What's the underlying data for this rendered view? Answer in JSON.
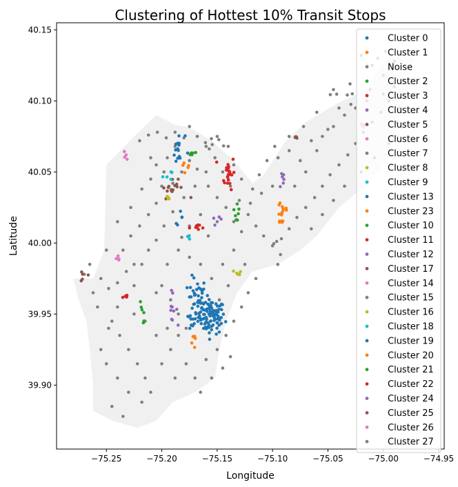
{
  "chart_data": {
    "type": "scatter",
    "title": "Clustering of Hottest 10% Transit Stops",
    "xlabel": "Longitude",
    "ylabel": "Latitude",
    "xlim": [
      -75.295,
      -74.945
    ],
    "ylim": [
      39.855,
      40.155
    ],
    "xticks": [
      -75.25,
      -75.2,
      -75.15,
      -75.1,
      -75.05,
      -75.0,
      -74.95
    ],
    "xtick_labels": [
      "−75.25",
      "−75.20",
      "−75.15",
      "−75.10",
      "−75.05",
      "−75.00",
      "−74.95"
    ],
    "yticks": [
      39.9,
      39.95,
      40.0,
      40.05,
      40.1,
      40.15
    ],
    "ytick_labels": [
      "39.90",
      "39.95",
      "40.00",
      "40.05",
      "40.10",
      "40.15"
    ],
    "grid": false,
    "legend_position": "top-right",
    "background_region_color": "#f0f0f0",
    "series": [
      {
        "name": "Cluster 0",
        "color": "#1f77b4",
        "clusters": [
          [
            -75.155,
            39.948,
            0.006,
            0.006,
            90
          ],
          [
            -75.168,
            39.96,
            0.004,
            0.008,
            40
          ],
          [
            -75.175,
            39.945,
            0.004,
            0.003,
            10
          ]
        ]
      },
      {
        "name": "Cluster 1",
        "color": "#ff7f0e",
        "clusters": [
          [
            -75.091,
            40.022,
            0.003,
            0.006,
            16
          ]
        ]
      },
      {
        "name": "Noise",
        "color": "#7f7f7f",
        "points": [
          [
            -75.255,
            39.975
          ],
          [
            -75.248,
            39.968
          ],
          [
            -75.24,
            39.972
          ],
          [
            -75.232,
            39.98
          ],
          [
            -75.225,
            39.985
          ],
          [
            -75.235,
            39.995
          ],
          [
            -75.228,
            40.005
          ],
          [
            -75.22,
            40.012
          ],
          [
            -75.212,
            40.02
          ],
          [
            -75.205,
            40.028
          ],
          [
            -75.2,
            40.04
          ],
          [
            -75.21,
            40.045
          ],
          [
            -75.218,
            40.038
          ],
          [
            -75.205,
            40.055
          ],
          [
            -75.195,
            40.06
          ],
          [
            -75.188,
            40.068
          ],
          [
            -75.18,
            40.074
          ],
          [
            -75.175,
            40.082
          ],
          [
            -75.168,
            40.075
          ],
          [
            -75.16,
            40.068
          ],
          [
            -75.152,
            40.06
          ],
          [
            -75.145,
            40.05
          ],
          [
            -75.138,
            40.04
          ],
          [
            -75.13,
            40.03
          ],
          [
            -75.122,
            40.02
          ],
          [
            -75.115,
            40.012
          ],
          [
            -75.108,
            40.005
          ],
          [
            -75.1,
            39.998
          ],
          [
            -75.092,
            40.003
          ],
          [
            -75.085,
            40.01
          ],
          [
            -75.078,
            40.018
          ],
          [
            -75.07,
            40.025
          ],
          [
            -75.062,
            40.032
          ],
          [
            -75.055,
            40.04
          ],
          [
            -75.048,
            40.048
          ],
          [
            -75.04,
            40.055
          ],
          [
            -75.032,
            40.062
          ],
          [
            -75.025,
            40.07
          ],
          [
            -75.018,
            40.078
          ],
          [
            -75.01,
            40.085
          ],
          [
            -75.002,
            40.092
          ],
          [
            -74.995,
            40.1
          ],
          [
            -74.99,
            40.11
          ],
          [
            -75.0,
            40.118
          ],
          [
            -75.01,
            40.125
          ],
          [
            -75.02,
            40.132
          ],
          [
            -75.03,
            40.112
          ],
          [
            -75.04,
            40.095
          ],
          [
            -75.05,
            40.08
          ],
          [
            -75.06,
            40.065
          ],
          [
            -75.07,
            40.05
          ],
          [
            -75.08,
            40.04
          ],
          [
            -75.065,
            40.01
          ],
          [
            -75.055,
            40.02
          ],
          [
            -75.045,
            40.03
          ],
          [
            -75.035,
            40.04
          ],
          [
            -75.02,
            40.05
          ],
          [
            -75.008,
            40.06
          ],
          [
            -74.995,
            40.07
          ],
          [
            -74.988,
            40.085
          ],
          [
            -75.015,
            40.1
          ],
          [
            -75.028,
            40.105
          ],
          [
            -75.045,
            40.108
          ],
          [
            -75.06,
            40.092
          ],
          [
            -75.072,
            40.082
          ],
          [
            -75.085,
            40.075
          ],
          [
            -75.098,
            40.068
          ],
          [
            -75.105,
            40.058
          ],
          [
            -75.112,
            40.048
          ],
          [
            -75.118,
            40.038
          ],
          [
            -75.128,
            40.045
          ],
          [
            -75.135,
            40.055
          ],
          [
            -75.14,
            40.068
          ],
          [
            -75.15,
            40.075
          ],
          [
            -75.16,
            40.05
          ],
          [
            -75.17,
            40.04
          ],
          [
            -75.18,
            40.032
          ],
          [
            -75.19,
            40.022
          ],
          [
            -75.198,
            40.012
          ],
          [
            -75.205,
            40.002
          ],
          [
            -75.212,
            39.995
          ],
          [
            -75.218,
            39.985
          ],
          [
            -75.225,
            39.97
          ],
          [
            -75.232,
            39.962
          ],
          [
            -75.24,
            39.955
          ],
          [
            -75.245,
            39.945
          ],
          [
            -75.238,
            39.935
          ],
          [
            -75.23,
            39.925
          ],
          [
            -75.222,
            39.915
          ],
          [
            -75.215,
            39.905
          ],
          [
            -75.21,
            39.895
          ],
          [
            -75.218,
            39.888
          ],
          [
            -75.23,
            39.895
          ],
          [
            -75.24,
            39.905
          ],
          [
            -75.25,
            39.915
          ],
          [
            -75.255,
            39.925
          ],
          [
            -75.248,
            39.94
          ],
          [
            -75.258,
            39.955
          ],
          [
            -75.262,
            39.965
          ],
          [
            -75.245,
            39.885
          ],
          [
            -75.235,
            39.878
          ],
          [
            -75.2,
            39.915
          ],
          [
            -75.192,
            39.925
          ],
          [
            -75.185,
            39.935
          ],
          [
            -75.178,
            39.915
          ],
          [
            -75.17,
            39.905
          ],
          [
            -75.16,
            39.918
          ],
          [
            -75.15,
            39.925
          ],
          [
            -75.142,
            39.935
          ],
          [
            -75.135,
            39.945
          ],
          [
            -75.128,
            39.955
          ],
          [
            -75.122,
            39.965
          ],
          [
            -75.115,
            39.975
          ],
          [
            -75.125,
            39.985
          ],
          [
            -75.135,
            39.995
          ],
          [
            -75.145,
            39.985
          ],
          [
            -75.155,
            39.975
          ],
          [
            -75.165,
            39.985
          ],
          [
            -75.175,
            39.99
          ],
          [
            -75.185,
            39.995
          ],
          [
            -75.195,
            39.985
          ],
          [
            -75.2,
            39.97
          ],
          [
            -75.192,
            39.96
          ],
          [
            -75.185,
            39.95
          ],
          [
            -75.178,
            39.94
          ],
          [
            -75.188,
            39.905
          ],
          [
            -75.165,
            39.895
          ],
          [
            -75.155,
            39.905
          ],
          [
            -75.145,
            39.912
          ],
          [
            -75.138,
            39.92
          ],
          [
            -75.148,
            39.96
          ],
          [
            -75.14,
            39.97
          ],
          [
            -75.13,
            39.978
          ],
          [
            -75.158,
            40.005
          ],
          [
            -75.15,
            40.015
          ],
          [
            -75.142,
            40.025
          ],
          [
            -75.135,
            40.015
          ],
          [
            -75.128,
            40.008
          ],
          [
            -75.165,
            40.02
          ],
          [
            -75.175,
            40.012
          ],
          [
            -75.182,
            40.004
          ],
          [
            -75.19,
            40.042
          ],
          [
            -75.182,
            40.05
          ],
          [
            -75.175,
            40.058
          ],
          [
            -75.168,
            40.052
          ],
          [
            -75.158,
            40.04
          ],
          [
            -75.15,
            40.032
          ],
          [
            -75.22,
            40.072
          ],
          [
            -75.212,
            40.076
          ],
          [
            -75.204,
            40.078
          ],
          [
            -75.196,
            40.074
          ],
          [
            -75.188,
            40.078
          ],
          [
            -75.21,
            40.06
          ],
          [
            -75.198,
            40.05
          ],
          [
            -75.228,
            40.025
          ],
          [
            -75.24,
            40.015
          ],
          [
            -75.25,
            39.995
          ],
          [
            -75.265,
            39.985
          ],
          [
            -75.27,
            39.978
          ],
          [
            -75.205,
            39.935
          ],
          [
            -75.215,
            39.945
          ],
          [
            -75.225,
            39.95
          ],
          [
            -75.205,
            39.965
          ],
          [
            -75.195,
            39.94
          ],
          [
            -75.12,
            40.028
          ],
          [
            -75.11,
            40.035
          ],
          [
            -75.1,
            40.04
          ],
          [
            -75.09,
            40.048
          ],
          [
            -75.095,
            40.06
          ],
          [
            -75.085,
            40.065
          ],
          [
            -75.075,
            40.058
          ],
          [
            -75.065,
            40.072
          ],
          [
            -75.055,
            40.075
          ],
          [
            -75.045,
            40.082
          ],
          [
            -75.035,
            40.09
          ],
          [
            -75.025,
            40.095
          ],
          [
            -75.012,
            40.108
          ],
          [
            -75.0,
            40.105
          ],
          [
            -74.985,
            40.095
          ],
          [
            -74.982,
            40.115
          ],
          [
            -74.99,
            40.128
          ],
          [
            -74.998,
            40.135
          ],
          [
            -75.005,
            40.13
          ]
        ]
      },
      {
        "name": "Cluster 2",
        "color": "#2ca02c",
        "clusters": [
          [
            -75.17,
            40.063,
            0.002,
            0.001,
            5
          ]
        ]
      },
      {
        "name": "Cluster 3",
        "color": "#d62728",
        "clusters": [
          [
            -75.14,
            40.05,
            0.003,
            0.006,
            22
          ]
        ]
      },
      {
        "name": "Cluster 4",
        "color": "#9467bd",
        "clusters": [
          [
            -75.092,
            40.046,
            0.001,
            0.003,
            5
          ]
        ]
      },
      {
        "name": "Cluster 5",
        "color": "#8c564b",
        "clusters": [
          [
            -75.19,
            40.038,
            0.006,
            0.003,
            16
          ]
        ]
      },
      {
        "name": "Cluster 6",
        "color": "#e377c2",
        "clusters": [
          [
            -75.232,
            40.062,
            0.001,
            0.002,
            4
          ]
        ]
      },
      {
        "name": "Cluster 7",
        "color": "#7f7f7f",
        "clusters": [
          [
            -75.155,
            40.07,
            0.006,
            0.004,
            6
          ]
        ]
      },
      {
        "name": "Cluster 8",
        "color": "#bcbd22",
        "clusters": [
          [
            -75.195,
            40.032,
            0.002,
            0.001,
            4
          ]
        ]
      },
      {
        "name": "Cluster 9",
        "color": "#17becf",
        "clusters": [
          [
            -75.195,
            40.048,
            0.002,
            0.002,
            5
          ]
        ]
      },
      {
        "name": "Cluster 13",
        "color": "#1f77b4",
        "clusters": [
          [
            -75.185,
            40.065,
            0.003,
            0.006,
            16
          ]
        ]
      },
      {
        "name": "Cluster 23",
        "color": "#ff7f0e",
        "clusters": [
          [
            -75.178,
            40.058,
            0.002,
            0.004,
            5
          ]
        ]
      },
      {
        "name": "Cluster 10",
        "color": "#2ca02c",
        "clusters": [
          [
            -75.132,
            40.022,
            0.001,
            0.006,
            8
          ]
        ]
      },
      {
        "name": "Cluster 11",
        "color": "#d62728",
        "clusters": [
          [
            -75.165,
            40.011,
            0.005,
            0.001,
            8
          ]
        ]
      },
      {
        "name": "Cluster 12",
        "color": "#9467bd",
        "clusters": [
          [
            -75.15,
            40.016,
            0.002,
            0.001,
            4
          ]
        ]
      },
      {
        "name": "Cluster 17",
        "color": "#8c564b",
        "clusters": [
          [
            -75.08,
            40.074,
            0.002,
            0.001,
            4
          ]
        ]
      },
      {
        "name": "Cluster 14",
        "color": "#e377c2",
        "clusters": [
          [
            -75.018,
            40.084,
            0.002,
            0.002,
            4
          ]
        ]
      },
      {
        "name": "Cluster 15",
        "color": "#7f7f7f",
        "clusters": [
          [
            -75.04,
            40.1,
            0.008,
            0.01,
            4
          ]
        ]
      },
      {
        "name": "Cluster 16",
        "color": "#bcbd22",
        "clusters": [
          [
            -75.13,
            39.979,
            0.003,
            0.001,
            5
          ]
        ]
      },
      {
        "name": "Cluster 18",
        "color": "#17becf",
        "clusters": [
          [
            -75.175,
            40.005,
            0.002,
            0.001,
            4
          ]
        ]
      },
      {
        "name": "Cluster 19",
        "color": "#1f77b4",
        "clusters": [
          [
            -75.185,
            40.018,
            0.002,
            0.002,
            5
          ]
        ]
      },
      {
        "name": "Cluster 20",
        "color": "#ff7f0e",
        "clusters": [
          [
            -75.17,
            39.93,
            0.002,
            0.003,
            5
          ]
        ]
      },
      {
        "name": "Cluster 21",
        "color": "#2ca02c",
        "clusters": [
          [
            -75.218,
            39.951,
            0.002,
            0.004,
            6
          ]
        ]
      },
      {
        "name": "Cluster 22",
        "color": "#d62728",
        "clusters": [
          [
            -75.232,
            39.962,
            0.002,
            0.001,
            4
          ]
        ]
      },
      {
        "name": "Cluster 24",
        "color": "#9467bd",
        "clusters": [
          [
            -75.192,
            39.955,
            0.003,
            0.005,
            10
          ]
        ]
      },
      {
        "name": "Cluster 25",
        "color": "#8c564b",
        "clusters": [
          [
            -75.27,
            39.977,
            0.002,
            0.002,
            5
          ]
        ]
      },
      {
        "name": "Cluster 26",
        "color": "#e377c2",
        "clusters": [
          [
            -75.24,
            39.987,
            0.002,
            0.002,
            5
          ]
        ]
      },
      {
        "name": "Cluster 27",
        "color": "#7f7f7f",
        "clusters": [
          [
            -75.095,
            39.985,
            0.01,
            0.01,
            4
          ]
        ]
      }
    ]
  }
}
